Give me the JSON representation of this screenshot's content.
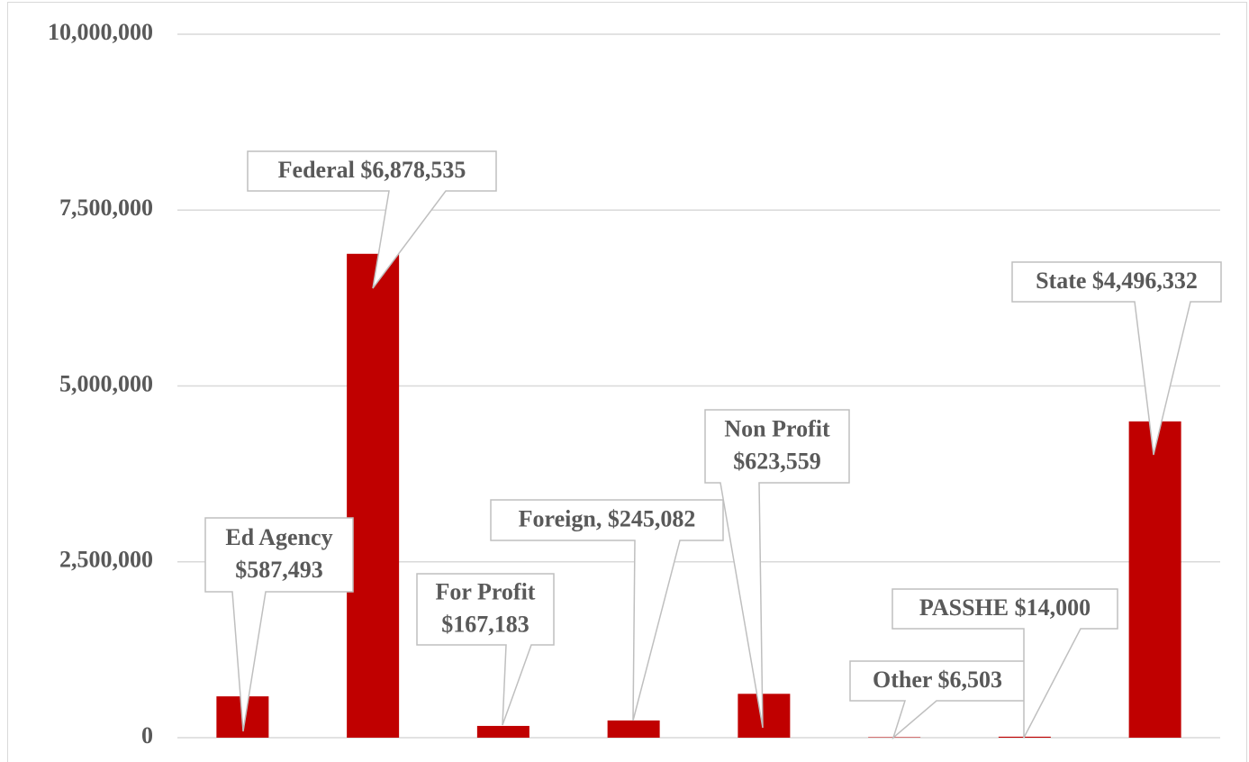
{
  "chart_data": {
    "type": "bar",
    "categories": [
      null,
      null,
      null,
      null,
      null,
      null,
      null,
      null
    ],
    "values": [
      587493,
      6878535,
      167183,
      245082,
      623559,
      6503,
      14000,
      4496332
    ],
    "value_labels": [
      [
        "Ed Agency",
        "$587,493"
      ],
      [
        "Federal $6,878,535"
      ],
      [
        "For Profit",
        "$167,183"
      ],
      [
        "Foreign, $245,082"
      ],
      [
        "Non Profit",
        "$623,559"
      ],
      [
        "Other $6,503"
      ],
      [
        "PASSHE $14,000"
      ],
      [
        "State $4,496,332"
      ]
    ],
    "color": "#c00000",
    "ylim": [
      0,
      10000000
    ],
    "yticks": [
      {
        "value": 0,
        "label": "0"
      },
      {
        "value": 2500000,
        "label": "2,500,000"
      },
      {
        "value": 5000000,
        "label": "5,000,000"
      },
      {
        "value": 7500000,
        "label": "7,500,000"
      },
      {
        "value": 10000000,
        "label": "10,000,000"
      }
    ],
    "grid": true
  }
}
